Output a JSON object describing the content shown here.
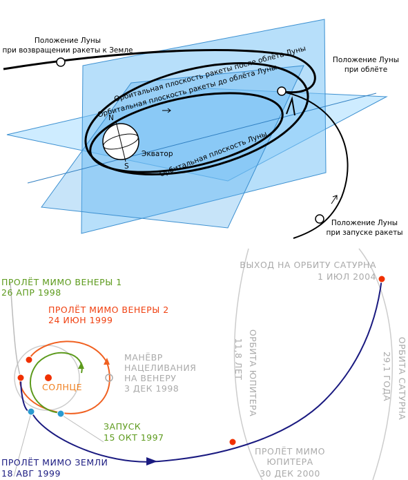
{
  "top": {
    "moon_return": [
      "Положение Луны",
      "при возвращении ракеты к Земле"
    ],
    "plane_after": "Орбитальная плоскость ракеты после облёта Луны",
    "plane_before": "Орбитальная плоскость ракеты до облёта Луны",
    "moon_flyby": [
      "Положение Луны",
      "при облёте"
    ],
    "north": "N",
    "south": "S",
    "equator": "Экватор",
    "moon_plane": "Орбитальная плоскость Луны",
    "moon_launch": [
      "Положение Луны",
      "при запуске ракеты"
    ]
  },
  "bottom": {
    "saturn_arrival": [
      "ВЫХОД НА ОРБИТУ САТУРНА",
      "1 ИЮЛ 2004"
    ],
    "venus1": [
      "ПРОЛЁТ МИМО ВЕНЕРЫ 1",
      "26 АПР 1998"
    ],
    "venus2": [
      "ПРОЛЁТ МИМО ВЕНЕРЫ 2",
      "24 ИЮН 1999"
    ],
    "maneuver": [
      "МАНЁВР",
      "НАЦЕЛИВАНИЯ",
      "НА ВЕНЕРУ",
      "3 ДЕК 1998"
    ],
    "sun": "СОЛНЦЕ",
    "launch": [
      "ЗАПУСК",
      "15 ОКТ 1997"
    ],
    "earth": [
      "ПРОЛЁТ МИМО ЗЕМЛИ",
      "18 АВГ 1999"
    ],
    "jupiter_flyby": [
      "ПРОЛЁТ МИМО",
      "ЮПИТЕРА",
      "30 ДЕК 2000"
    ],
    "jupiter_orbit": [
      "ОРБИТА ЮПИТЕРА",
      "11,8 ЛЕТ"
    ],
    "saturn_orbit": [
      "ОРБИТА САТУРНА",
      "29,1 ГОДА"
    ]
  }
}
